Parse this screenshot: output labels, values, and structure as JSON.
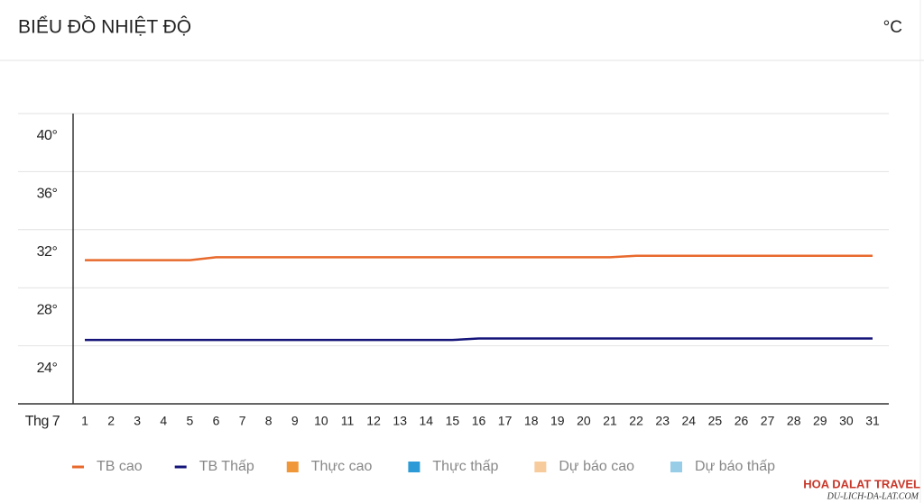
{
  "chart_data": {
    "type": "line",
    "title": "BIỂU ĐỒ NHIỆT ĐỘ",
    "unit": "°C",
    "x_label": "Thg 7",
    "categories": [
      "1",
      "2",
      "3",
      "4",
      "5",
      "6",
      "7",
      "8",
      "9",
      "10",
      "11",
      "12",
      "13",
      "14",
      "15",
      "16",
      "17",
      "18",
      "19",
      "20",
      "21",
      "22",
      "23",
      "24",
      "25",
      "26",
      "27",
      "28",
      "29",
      "30",
      "31"
    ],
    "series": [
      {
        "name": "TB cao",
        "color": "#e8692c",
        "values": [
          29.9,
          29.9,
          29.9,
          29.9,
          29.9,
          30.1,
          30.1,
          30.1,
          30.1,
          30.1,
          30.1,
          30.1,
          30.1,
          30.1,
          30.1,
          30.1,
          30.1,
          30.1,
          30.1,
          30.1,
          30.1,
          30.2,
          30.2,
          30.2,
          30.2,
          30.2,
          30.2,
          30.2,
          30.2,
          30.2,
          30.2
        ]
      },
      {
        "name": "TB Thấp",
        "color": "#14147a",
        "values": [
          24.4,
          24.4,
          24.4,
          24.4,
          24.4,
          24.4,
          24.4,
          24.4,
          24.4,
          24.4,
          24.4,
          24.4,
          24.4,
          24.4,
          24.4,
          24.5,
          24.5,
          24.5,
          24.5,
          24.5,
          24.5,
          24.5,
          24.5,
          24.5,
          24.5,
          24.5,
          24.5,
          24.5,
          24.5,
          24.5,
          24.5
        ]
      }
    ],
    "extra_legend": [
      {
        "name": "Thực cao",
        "color": "#f0973a"
      },
      {
        "name": "Thực thấp",
        "color": "#2c9ad6"
      },
      {
        "name": "Dự báo cao",
        "color": "#f8cb9c"
      },
      {
        "name": "Dự báo thấp",
        "color": "#98cde8"
      }
    ],
    "ylim": [
      20,
      40
    ],
    "yticks": [
      {
        "value": 40,
        "label": "40°"
      },
      {
        "value": 36,
        "label": "36°"
      },
      {
        "value": 32,
        "label": "32°"
      },
      {
        "value": 28,
        "label": "28°"
      },
      {
        "value": 24,
        "label": "24°"
      }
    ],
    "grid": true,
    "watermark": {
      "title": "HOA DALAT TRAVEL",
      "subtitle": "DU-LICH-DA-LAT.COM"
    }
  }
}
